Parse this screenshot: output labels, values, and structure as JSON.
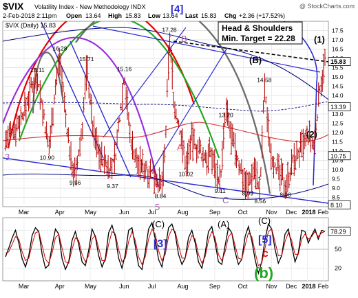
{
  "header": {
    "symbol": "$VIX",
    "name": "Volatility Index - New Methodology INDX",
    "watermark": "@ StockCharts.com",
    "date": "2-Feb-2018 2:11pm",
    "open_label": "Open",
    "open": "13.64",
    "high_label": "High",
    "high": "15.83",
    "low_label": "Low",
    "low": "13.64",
    "last_label": "Last",
    "last": "15.83",
    "chg_label": "Chg",
    "chg": "+2.36 (+17.52%)",
    "legend": "$VIX (Daily) 15.83"
  },
  "annotations": {
    "box_line1": "Head & Shoulders",
    "box_line2": "Min. Target = 22.28",
    "wave_top": "[4]",
    "wave_1": "(1)",
    "wave_B_paren": "(B)",
    "wave_2": "(2)",
    "wave_B": "B",
    "wave_A": "A",
    "wave_C": "C",
    "wave_3": "3",
    "wave_5": "5",
    "osc_C_paren": "(C)",
    "osc_A_paren": "(A)",
    "osc_C_paren2": "(C)",
    "osc_3": "[3]",
    "osc_5": "[5]",
    "osc_c": "c",
    "osc_b": "(b)"
  },
  "colors": {
    "price_bar": "#b40000",
    "ma_red": "#d23232",
    "envelope": "#000080",
    "trend_blue": "#2a2ad2",
    "wave_red": "#e60000",
    "wave_green": "#21a821",
    "wave_purple": "#9b30e0",
    "wave_gray": "#6e6e6e",
    "osc_line": "#000000",
    "osc_signal": "#cc0000"
  },
  "chart_data": [
    {
      "type": "bar",
      "subtype": "ohlc",
      "title": "$VIX Volatility Index - New Methodology INDX",
      "ylim": [
        8,
        18
      ],
      "ticks": [
        8.5,
        9.0,
        9.5,
        10.0,
        10.5,
        11.0,
        11.5,
        12.0,
        12.5,
        13.0,
        13.5,
        14.0,
        14.5,
        15.0,
        15.5,
        16.0,
        16.5,
        17.0,
        17.5
      ],
      "tick_labels": [
        "8.5",
        "9.0",
        "9.5",
        "10.0",
        "10.5",
        "11.0",
        "11.5",
        "12.0",
        "12.5",
        "13.0",
        "13.5",
        "14.0",
        "14.5",
        "15.0",
        "15.5",
        "16.0",
        "16.5",
        "17.0",
        "17.5"
      ],
      "x_labels": [
        "Mar",
        "Apr",
        "May",
        "Jun",
        "Jul",
        "Aug",
        "Sep",
        "Oct",
        "Nov",
        "Dec",
        "2018",
        "Feb"
      ],
      "value_flags": [
        {
          "label": "15.83",
          "value": 15.83
        },
        {
          "label": "13.39",
          "value": 13.39
        },
        {
          "label": "10.75",
          "value": 10.75
        },
        {
          "label": "8.10",
          "value": 8.1
        }
      ],
      "point_labels": [
        {
          "label": "15.11",
          "x": 0.1,
          "y": 15.11
        },
        {
          "label": "16.28",
          "x": 0.17,
          "y": 16.28
        },
        {
          "label": "15.71",
          "x": 0.254,
          "y": 15.71
        },
        {
          "label": "15.16",
          "x": 0.372,
          "y": 15.16
        },
        {
          "label": "17.28",
          "x": 0.513,
          "y": 17.28
        },
        {
          "label": "14.58",
          "x": 0.81,
          "y": 14.58
        },
        {
          "label": "13.20",
          "x": 0.69,
          "y": 13.2
        },
        {
          "label": "10.90",
          "x": 0.13,
          "y": 10.9
        },
        {
          "label": "9.56",
          "x": 0.218,
          "y": 9.56
        },
        {
          "label": "9.37",
          "x": 0.335,
          "y": 9.37
        },
        {
          "label": "8.84",
          "x": 0.485,
          "y": 8.84
        },
        {
          "label": "10.02",
          "x": 0.565,
          "y": 10.02
        },
        {
          "label": "9.11",
          "x": 0.672,
          "y": 9.11
        },
        {
          "label": "8.99",
          "x": 0.758,
          "y": 8.99
        },
        {
          "label": "8.56",
          "x": 0.797,
          "y": 8.56
        },
        {
          "label": "8.90",
          "x": 0.876,
          "y": 8.9
        }
      ],
      "anchors": [
        [
          0.0,
          11.6
        ],
        [
          0.03,
          12.2
        ],
        [
          0.06,
          13.2
        ],
        [
          0.08,
          14.4
        ],
        [
          0.1,
          15.11
        ],
        [
          0.12,
          12.8
        ],
        [
          0.135,
          11.0
        ],
        [
          0.15,
          13.5
        ],
        [
          0.17,
          16.28
        ],
        [
          0.19,
          12.5
        ],
        [
          0.205,
          10.5
        ],
        [
          0.22,
          9.6
        ],
        [
          0.24,
          12.2
        ],
        [
          0.255,
          15.71
        ],
        [
          0.275,
          12.0
        ],
        [
          0.3,
          10.6
        ],
        [
          0.33,
          10.0
        ],
        [
          0.345,
          10.8
        ],
        [
          0.372,
          15.16
        ],
        [
          0.39,
          11.8
        ],
        [
          0.41,
          10.4
        ],
        [
          0.44,
          10.1
        ],
        [
          0.47,
          9.7
        ],
        [
          0.487,
          8.9
        ],
        [
          0.5,
          11.0
        ],
        [
          0.513,
          17.28
        ],
        [
          0.53,
          13.2
        ],
        [
          0.55,
          11.8
        ],
        [
          0.565,
          10.2
        ],
        [
          0.58,
          11.6
        ],
        [
          0.6,
          11.2
        ],
        [
          0.62,
          10.6
        ],
        [
          0.645,
          10.8
        ],
        [
          0.672,
          9.3
        ],
        [
          0.69,
          13.2
        ],
        [
          0.71,
          11.5
        ],
        [
          0.73,
          10.3
        ],
        [
          0.758,
          9.1
        ],
        [
          0.78,
          10.2
        ],
        [
          0.797,
          8.7
        ],
        [
          0.81,
          14.5
        ],
        [
          0.83,
          11.0
        ],
        [
          0.85,
          10.0
        ],
        [
          0.876,
          9.2
        ],
        [
          0.9,
          10.4
        ],
        [
          0.93,
          11.2
        ],
        [
          0.95,
          11.8
        ],
        [
          0.965,
          11.0
        ],
        [
          0.985,
          14.6
        ],
        [
          1.0,
          15.83
        ]
      ],
      "range_dv": 1.9
    },
    {
      "type": "line",
      "title": "Oscillator",
      "ylim": [
        0,
        100
      ],
      "ticks": [
        20,
        50,
        80
      ],
      "tick_labels": [
        "20",
        "50",
        "80"
      ],
      "last_flag": "78.29",
      "x_labels": [
        "Mar",
        "Apr",
        "May",
        "Jun",
        "Jul",
        "Aug",
        "Sep",
        "Oct",
        "Nov",
        "Dec",
        "2018",
        "Feb"
      ],
      "series": [
        {
          "values": [
            38,
            52,
            68,
            80,
            60,
            35,
            22,
            40,
            72,
            84,
            78,
            42,
            20,
            25,
            55,
            82,
            74,
            35,
            18,
            30,
            64,
            78,
            58,
            30,
            24,
            48,
            82,
            70,
            40,
            22,
            35,
            76,
            88,
            70,
            36,
            20,
            42,
            80,
            84,
            55,
            24,
            18,
            46,
            82,
            92,
            66,
            34,
            22,
            50,
            84,
            90,
            74,
            42,
            26,
            36,
            68,
            80,
            60,
            30,
            20,
            44,
            78,
            86,
            60,
            30,
            26,
            56,
            84,
            76,
            46,
            26,
            34,
            70,
            86,
            64,
            34,
            12,
            30,
            66,
            90,
            82,
            50,
            28,
            40,
            74,
            82,
            56,
            30,
            44,
            80,
            78,
            60,
            72,
            82,
            66,
            80,
            78
          ]
        },
        {
          "values": [
            44,
            46,
            58,
            70,
            66,
            46,
            32,
            36,
            58,
            76,
            78,
            56,
            34,
            28,
            44,
            68,
            74,
            52,
            30,
            28,
            50,
            68,
            64,
            42,
            30,
            40,
            66,
            72,
            52,
            32,
            32,
            58,
            78,
            74,
            50,
            30,
            36,
            62,
            78,
            64,
            38,
            26,
            38,
            66,
            82,
            74,
            48,
            32,
            42,
            70,
            82,
            78,
            56,
            36,
            36,
            56,
            72,
            66,
            42,
            28,
            38,
            64,
            78,
            68,
            42,
            32,
            46,
            70,
            76,
            56,
            36,
            34,
            56,
            76,
            70,
            46,
            24,
            28,
            52,
            78,
            82,
            62,
            40,
            40,
            62,
            76,
            64,
            42,
            42,
            66,
            74,
            66,
            70,
            78,
            70,
            76,
            78
          ]
        }
      ]
    }
  ]
}
